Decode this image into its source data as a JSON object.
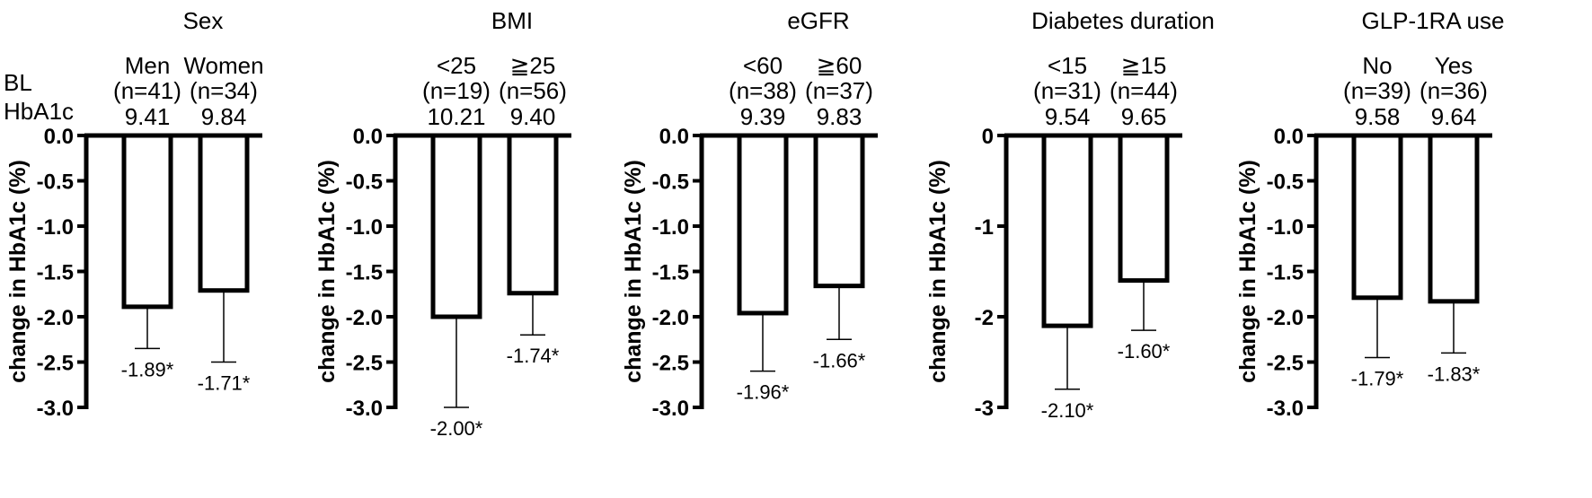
{
  "bl_label": [
    "BL",
    "HbA1c"
  ],
  "chart_data": [
    {
      "type": "bar",
      "title": "Sex",
      "ylabel": "change in HbA1c (%)",
      "ylim": [
        -3.0,
        0.0
      ],
      "yticks": [
        "0.0",
        "-0.5",
        "-1.0",
        "-1.5",
        "-2.0",
        "-2.5",
        "-3.0"
      ],
      "categories": [
        "Men",
        "Women"
      ],
      "n_labels": [
        "(n=41)",
        "(n=34)"
      ],
      "baseline_hba1c": [
        "9.41",
        "9.84"
      ],
      "values": [
        -1.89,
        -1.71
      ],
      "error_lower": [
        -2.35,
        -2.5
      ],
      "value_labels": [
        "-1.89*",
        "-1.71*"
      ]
    },
    {
      "type": "bar",
      "title": "BMI",
      "ylabel": "change in HbA1c (%)",
      "ylim": [
        -3.0,
        0.0
      ],
      "yticks": [
        "0.0",
        "-0.5",
        "-1.0",
        "-1.5",
        "-2.0",
        "-2.5",
        "-3.0"
      ],
      "categories": [
        "<25",
        "≧25"
      ],
      "n_labels": [
        "(n=19)",
        "(n=56)"
      ],
      "baseline_hba1c": [
        "10.21",
        "9.40"
      ],
      "values": [
        -2.0,
        -1.74
      ],
      "error_lower": [
        -3.0,
        -2.2
      ],
      "value_labels": [
        "-2.00*",
        "-1.74*"
      ]
    },
    {
      "type": "bar",
      "title": "eGFR",
      "ylabel": "change in HbA1c (%)",
      "ylim": [
        -3.0,
        0.0
      ],
      "yticks": [
        "0.0",
        "-0.5",
        "-1.0",
        "-1.5",
        "-2.0",
        "-2.5",
        "-3.0"
      ],
      "categories": [
        "<60",
        "≧60"
      ],
      "n_labels": [
        "(n=38)",
        "(n=37)"
      ],
      "baseline_hba1c": [
        "9.39",
        "9.83"
      ],
      "values": [
        -1.96,
        -1.66
      ],
      "error_lower": [
        -2.6,
        -2.25
      ],
      "value_labels": [
        "-1.96*",
        "-1.66*"
      ]
    },
    {
      "type": "bar",
      "title": "Diabetes duration",
      "ylabel": "change in HbA1c (%)",
      "ylim": [
        -3.0,
        0.0
      ],
      "yticks": [
        "0",
        "-1",
        "-2",
        "-3"
      ],
      "categories": [
        "<15",
        "≧15"
      ],
      "n_labels": [
        "(n=31)",
        "(n=44)"
      ],
      "baseline_hba1c": [
        "9.54",
        "9.65"
      ],
      "values": [
        -2.1,
        -1.6
      ],
      "error_lower": [
        -2.8,
        -2.15
      ],
      "value_labels": [
        "-2.10*",
        "-1.60*"
      ]
    },
    {
      "type": "bar",
      "title": "GLP-1RA use",
      "ylabel": "change in HbA1c (%)",
      "ylim": [
        -3.0,
        0.0
      ],
      "yticks": [
        "0.0",
        "-0.5",
        "-1.0",
        "-1.5",
        "-2.0",
        "-2.5",
        "-3.0"
      ],
      "categories": [
        "No",
        "Yes"
      ],
      "n_labels": [
        "(n=39)",
        "(n=36)"
      ],
      "baseline_hba1c": [
        "9.58",
        "9.64"
      ],
      "values": [
        -1.79,
        -1.83
      ],
      "error_lower": [
        -2.45,
        -2.4
      ],
      "value_labels": [
        "-1.79*",
        "-1.83*"
      ]
    }
  ]
}
